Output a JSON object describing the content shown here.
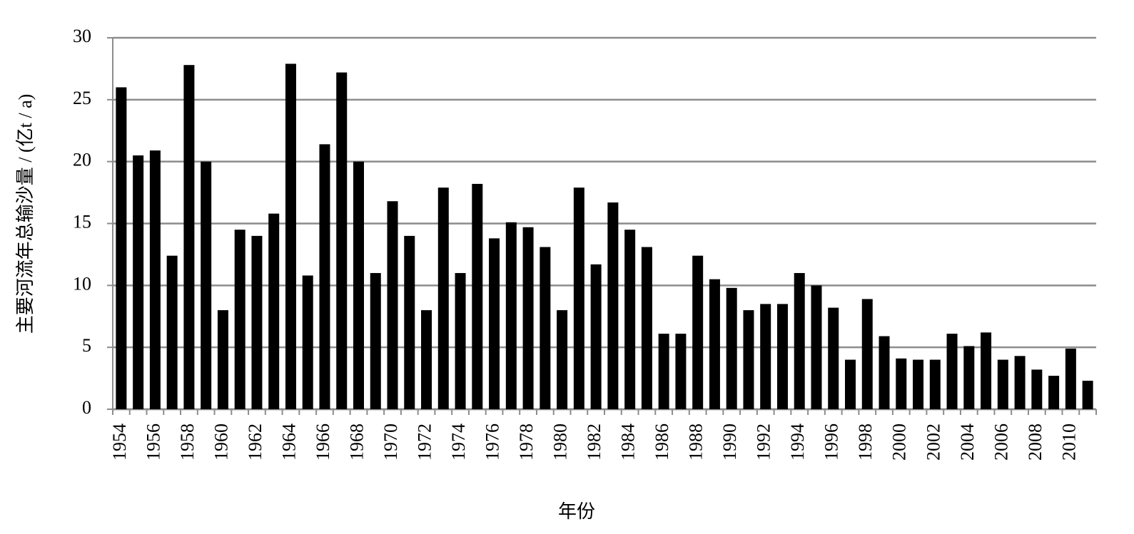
{
  "chart_data": {
    "type": "bar",
    "x_label": "年份",
    "y_label": "主要河流年总输沙量 / (亿t / a)",
    "categories": [
      "1954",
      null,
      "1956",
      null,
      "1958",
      null,
      "1960",
      null,
      "1962",
      null,
      "1964",
      null,
      "1966",
      null,
      "1968",
      null,
      "1970",
      null,
      "1972",
      null,
      "1974",
      null,
      "1976",
      null,
      "1978",
      null,
      "1980",
      null,
      "1982",
      null,
      "1984",
      null,
      "1986",
      null,
      "1988",
      null,
      "1990",
      null,
      "1992",
      null,
      "1994",
      null,
      "1996",
      null,
      "1998",
      null,
      "2000",
      null,
      "2002",
      null,
      "2004",
      null,
      "2006",
      null,
      "2008",
      null,
      "2010",
      null
    ],
    "values": [
      26,
      20.5,
      20.9,
      12.4,
      27.8,
      20,
      8,
      14.5,
      14,
      15.8,
      27.9,
      10.8,
      21.4,
      27.2,
      20,
      11,
      16.8,
      14,
      8,
      17.9,
      11,
      18.2,
      13.8,
      15.1,
      14.7,
      13.1,
      8,
      17.9,
      11.7,
      16.7,
      14.5,
      13.1,
      6.1,
      6.1,
      12.4,
      10.5,
      9.8,
      8,
      8.5,
      8.5,
      11,
      10,
      8.2,
      4,
      8.9,
      5.9,
      4.1,
      4,
      4,
      6.1,
      5.1,
      6.2,
      4,
      4.3,
      3.2,
      2.7,
      4.9,
      2.3
    ],
    "color": "#000000",
    "ylim": [
      0,
      30
    ],
    "yticks": [
      0,
      5,
      10,
      15,
      20,
      25,
      30
    ],
    "grid": true
  }
}
